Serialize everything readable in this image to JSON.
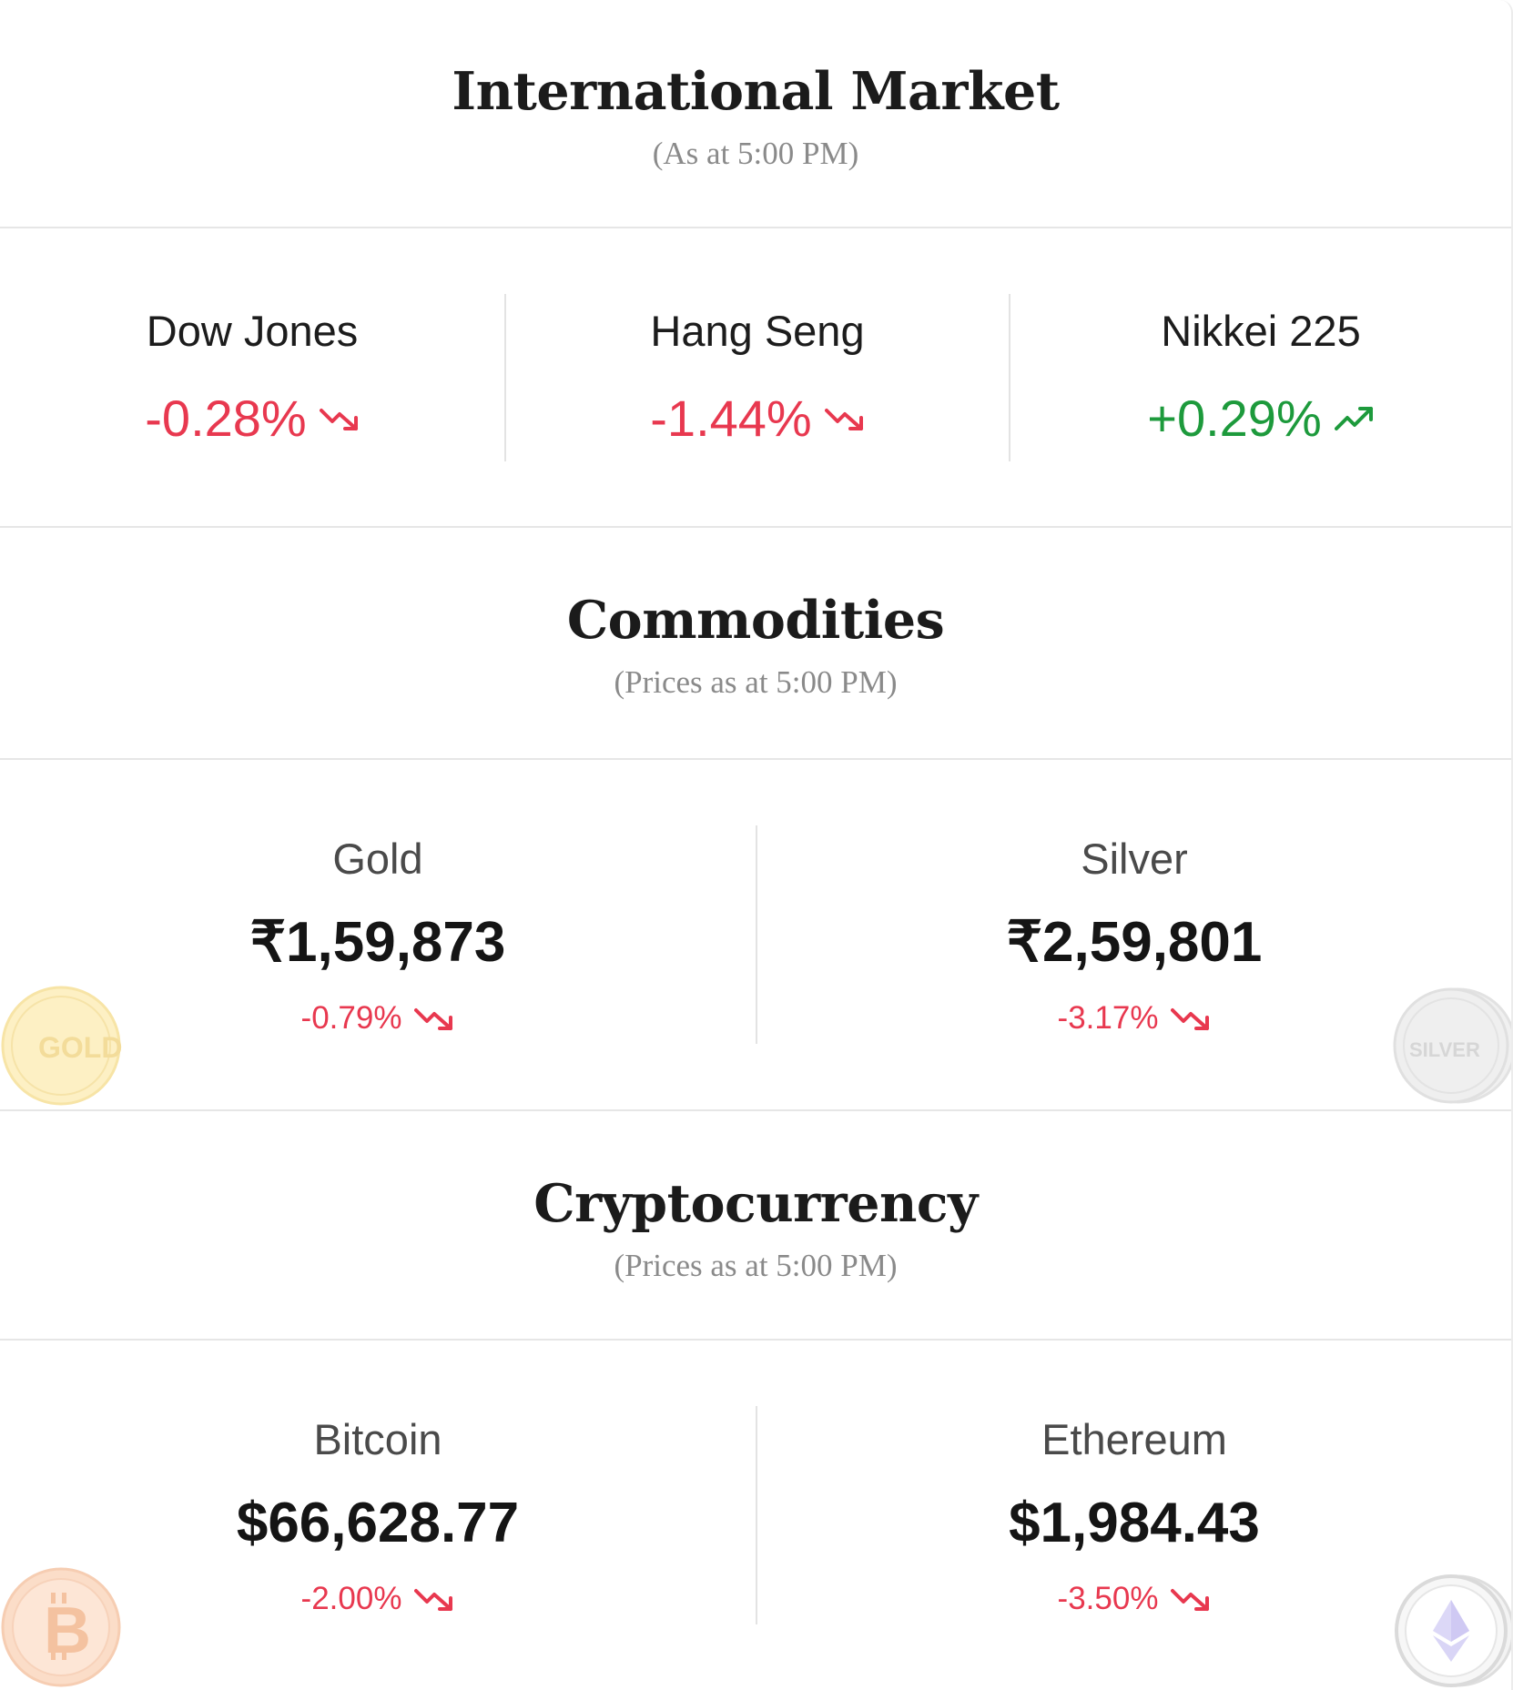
{
  "international": {
    "title": "International Market",
    "subtitle": "(As at 5:00 PM)",
    "indices": [
      {
        "name": "Dow Jones",
        "change": "-0.28%",
        "direction": "down"
      },
      {
        "name": "Hang Seng",
        "change": "-1.44%",
        "direction": "down"
      },
      {
        "name": "Nikkei 225",
        "change": "+0.29%",
        "direction": "up"
      }
    ]
  },
  "commodities": {
    "title": "Commodities",
    "subtitle": "(Prices as at 5:00 PM)",
    "items": [
      {
        "name": "Gold",
        "price": "₹1,59,873",
        "change": "-0.79%",
        "direction": "down",
        "coin_label": "GOLD",
        "coin_icon": "gold-coin-icon"
      },
      {
        "name": "Silver",
        "price": "₹2,59,801",
        "change": "-3.17%",
        "direction": "down",
        "coin_label": "SILVER",
        "coin_icon": "silver-coin-icon"
      }
    ]
  },
  "crypto": {
    "title": "Cryptocurrency",
    "subtitle": "(Prices as at 5:00 PM)",
    "items": [
      {
        "name": "Bitcoin",
        "price": "$66,628.77",
        "change": "-2.00%",
        "direction": "down",
        "coin_icon": "bitcoin-icon"
      },
      {
        "name": "Ethereum",
        "price": "$1,984.43",
        "change": "-3.50%",
        "direction": "down",
        "coin_icon": "ethereum-icon"
      }
    ]
  },
  "colors": {
    "negative": "#e8384f",
    "positive": "#1d9a3c",
    "gold_coin": "#fdf1c8",
    "silver_coin": "#ededed",
    "bitcoin_coin": "#fbdcc6"
  }
}
